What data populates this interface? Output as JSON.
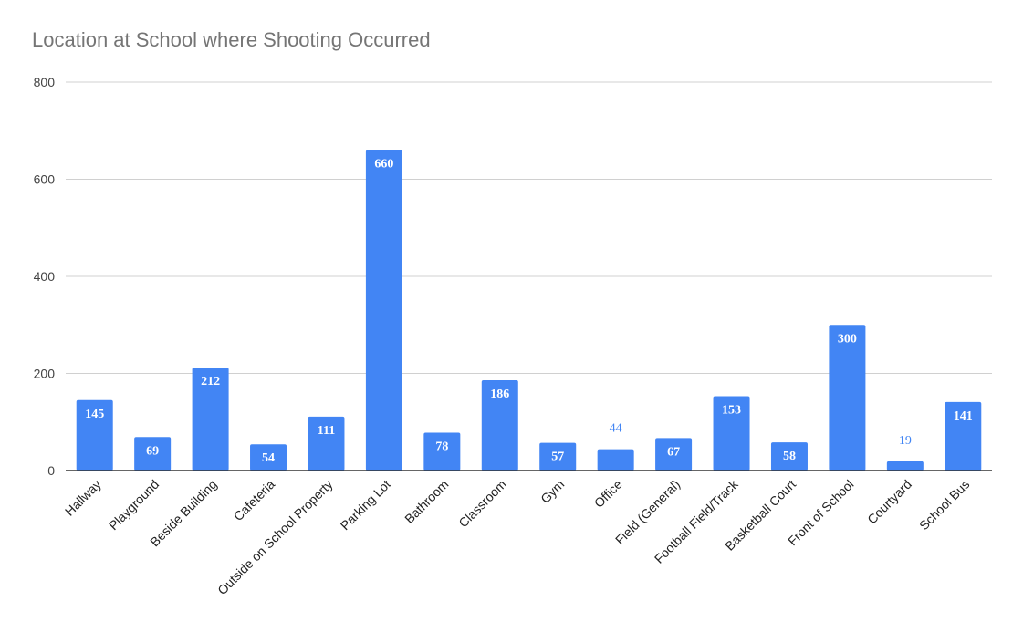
{
  "chart_data": {
    "type": "bar",
    "title": "Location at School where Shooting Occurred",
    "xlabel": "",
    "ylabel": "",
    "categories": [
      "Hallway",
      "Playground",
      "Beside Building",
      "Cafeteria",
      "Outside on School Property",
      "Parking Lot",
      "Bathroom",
      "Classroom",
      "Gym",
      "Office",
      "Field (General)",
      "Football Field/Track",
      "Basketball Court",
      "Front of School",
      "Courtyard",
      "School Bus"
    ],
    "values": [
      145,
      69,
      212,
      54,
      111,
      660,
      78,
      186,
      57,
      44,
      67,
      153,
      58,
      300,
      19,
      141
    ],
    "ylim": [
      0,
      800
    ],
    "yticks": [
      0,
      200,
      400,
      600,
      800
    ],
    "grid": true,
    "legend": "none",
    "bar_color": "#4285f4",
    "data_labels": true
  }
}
